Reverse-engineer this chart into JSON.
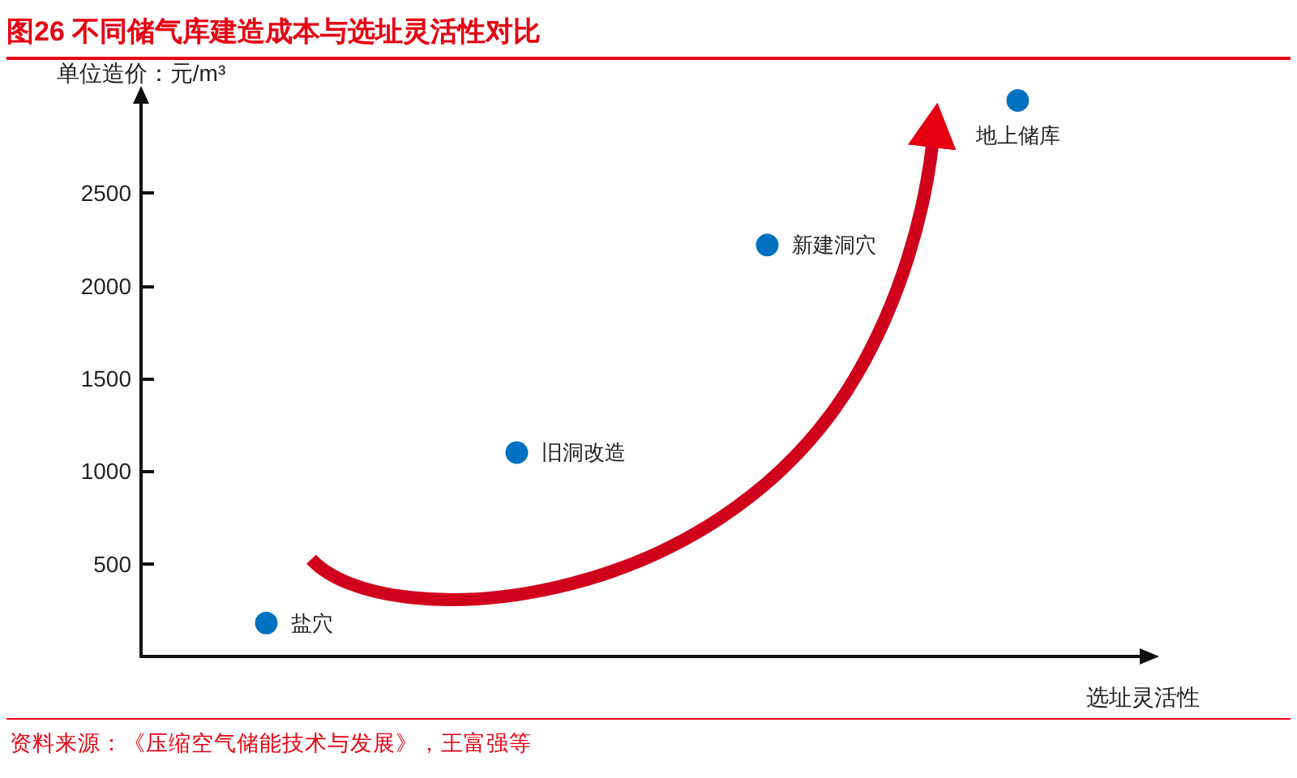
{
  "chart_data": {
    "type": "scatter",
    "title": "图26 不同储气库建造成本与选址灵活性对比",
    "ylabel": "单位造价：元/m³",
    "xlabel": "选址灵活性",
    "categories": [
      null,
      null,
      null,
      null
    ],
    "series": [
      {
        "name": "盐穴",
        "color": "#0070c0",
        "values": [
          180,
          null,
          null,
          null
        ]
      },
      {
        "name": "旧洞改造",
        "color": "#0070c0",
        "values": [
          null,
          1100,
          null,
          null
        ]
      },
      {
        "name": "新建洞穴",
        "color": "#0070c0",
        "values": [
          null,
          null,
          2220,
          null
        ]
      },
      {
        "name": "地上储库",
        "color": "#0070c0",
        "values": [
          null,
          null,
          null,
          3000
        ]
      }
    ],
    "ylim": [
      0,
      3000
    ],
    "yticks": [
      500,
      1000,
      1500,
      2000,
      2500
    ],
    "marker": "circle",
    "tick_labels": "y",
    "annotations": [
      "资料来源：《压缩空气储能技术与发展》，王富强等"
    ]
  }
}
